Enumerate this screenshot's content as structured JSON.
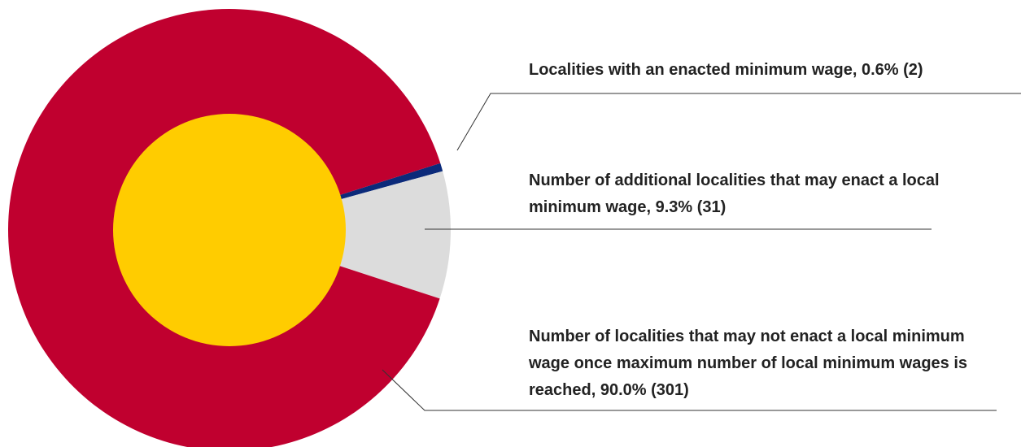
{
  "chart_data": {
    "type": "pie",
    "categories": [
      "Localities with an enacted minimum wage, 0.6% (2)",
      "Number of additional localities that may enact a local minimum wage, 9.3% (31)",
      "Number of localities that may not enact a local minimum wage once maximum number of local minimum wages is reached, 90.0% (301)"
    ],
    "values": [
      0.6,
      9.3,
      90.0
    ],
    "colors": [
      "#0b2a7a",
      "#dcdcdc",
      "#c0002f"
    ]
  }
}
